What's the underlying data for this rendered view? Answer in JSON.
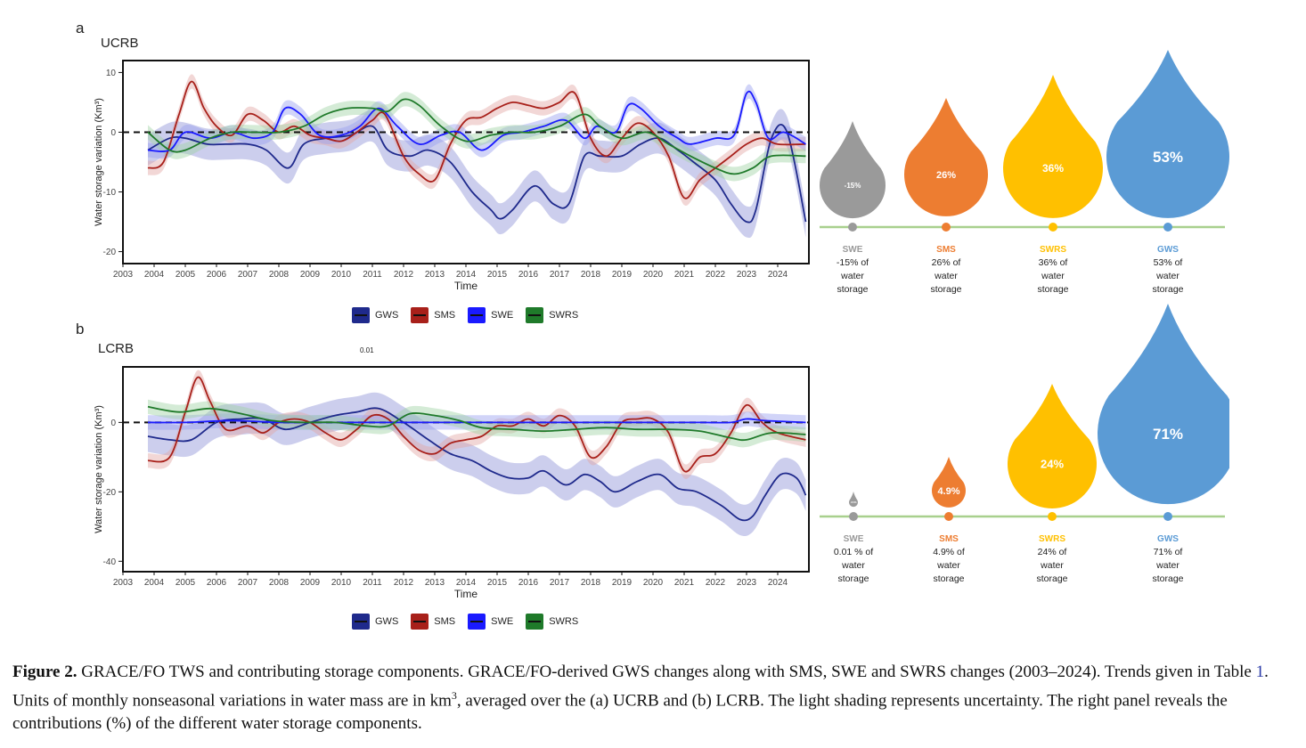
{
  "panel_a": {
    "letter": "a",
    "basin": "UCRB"
  },
  "panel_b": {
    "letter": "b",
    "basin": "LCRB",
    "floating_note": "0.01"
  },
  "legend": [
    {
      "name": "GWS",
      "color": "#1f2a8c"
    },
    {
      "name": "SMS",
      "color": "#a8201a"
    },
    {
      "name": "SWE",
      "color": "#1a1aff"
    },
    {
      "name": "SWRS",
      "color": "#1f7a2a"
    }
  ],
  "chart_data": [
    {
      "type": "line",
      "title": "UCRB",
      "xlabel": "Time",
      "ylabel": "Water storage variation  (Km³)",
      "xlim": [
        2003,
        2025
      ],
      "ylim": [
        -22,
        12
      ],
      "yticks": [
        10,
        0,
        -10,
        -20
      ],
      "xticks": [
        2003,
        2004,
        2005,
        2006,
        2007,
        2008,
        2009,
        2010,
        2011,
        2012,
        2013,
        2014,
        2015,
        2016,
        2017,
        2018,
        2019,
        2020,
        2021,
        2022,
        2023,
        2024
      ],
      "zero_line": "dashed",
      "series": [
        {
          "name": "GWS",
          "color": "#1f2a8c",
          "band": "#8f93d8",
          "x": [
            2003.8,
            2004.5,
            2005,
            2005.7,
            2006.3,
            2007,
            2007.6,
            2008.3,
            2008.8,
            2009.5,
            2010.3,
            2011,
            2011.5,
            2012.2,
            2012.8,
            2013.5,
            2014.2,
            2014.8,
            2015.1,
            2015.5,
            2016.2,
            2016.8,
            2017.3,
            2017.8,
            2018.3,
            2019,
            2019.6,
            2020.2,
            2020.8,
            2021.3,
            2022,
            2022.5,
            2023.0,
            2023.3,
            2023.8,
            2024.3,
            2024.9
          ],
          "y": [
            -3,
            -1,
            -1,
            -2,
            -2,
            -2,
            -3,
            -6,
            -2,
            -1,
            -0.5,
            1,
            -3,
            -4,
            -3,
            -5,
            -10,
            -13,
            -14.5,
            -13,
            -9,
            -12,
            -12,
            -4,
            -4,
            -4,
            -2,
            -1,
            -3,
            -5,
            -8,
            -12,
            -15,
            -13,
            -1,
            0,
            -15
          ]
        },
        {
          "name": "SMS",
          "color": "#a8201a",
          "band": "#e2a7a5",
          "x": [
            2003.8,
            2004.3,
            2004.8,
            2005.2,
            2005.6,
            2006,
            2006.5,
            2007,
            2007.5,
            2008,
            2008.5,
            2009,
            2009.5,
            2010,
            2010.5,
            2011,
            2011.4,
            2012,
            2012.5,
            2013,
            2013.5,
            2014,
            2014.5,
            2015,
            2015.5,
            2016,
            2016.5,
            2017,
            2017.5,
            2018,
            2018.5,
            2019,
            2019.5,
            2020,
            2020.5,
            2021,
            2021.5,
            2022,
            2022.5,
            2023,
            2023.5,
            2024,
            2024.9
          ],
          "y": [
            -6,
            -5,
            3,
            8.5,
            4,
            1,
            -0.5,
            3,
            2,
            0,
            1,
            -0.5,
            -1,
            -1.5,
            0,
            2,
            3,
            -4,
            -7,
            -8,
            -2,
            2,
            2.5,
            4,
            5,
            4.5,
            4,
            5,
            6.5,
            -1,
            -4,
            -1,
            1.5,
            0,
            -4,
            -11,
            -8,
            -6,
            -4,
            -2,
            -1,
            -2,
            -2
          ]
        },
        {
          "name": "SWE",
          "color": "#1a1aff",
          "band": "#9aa0f0",
          "x": [
            2003.8,
            2004.5,
            2005,
            2005.8,
            2006.5,
            2007.2,
            2007.8,
            2008.2,
            2008.7,
            2009.3,
            2010,
            2010.6,
            2011.2,
            2011.8,
            2012.5,
            2013.2,
            2013.8,
            2014.5,
            2015.2,
            2015.8,
            2016.5,
            2017.2,
            2017.8,
            2018.2,
            2018.8,
            2019.2,
            2019.6,
            2020.2,
            2020.8,
            2021.2,
            2022,
            2022.6,
            2023.0,
            2023.3,
            2023.7,
            2024.2,
            2024.9
          ],
          "y": [
            -3,
            -3,
            0,
            -1,
            0,
            -1,
            0,
            4,
            3,
            -0.5,
            -0.5,
            1,
            4,
            1,
            -2,
            -0.5,
            0,
            -3,
            -0.5,
            0,
            1,
            2,
            -1,
            1,
            0,
            4.5,
            4,
            1,
            -1,
            -2,
            -1,
            -0.5,
            6.5,
            5,
            -1,
            0,
            -2
          ]
        },
        {
          "name": "SWRS",
          "color": "#1f7a2a",
          "band": "#9fd3a3",
          "x": [
            2003.8,
            2004.5,
            2005,
            2005.8,
            2006.5,
            2007.2,
            2008,
            2008.8,
            2009.5,
            2010.2,
            2011,
            2011.5,
            2012,
            2012.5,
            2013.2,
            2014,
            2014.8,
            2015.5,
            2016.2,
            2017,
            2017.8,
            2018.3,
            2019,
            2019.8,
            2020.5,
            2021.2,
            2022,
            2022.6,
            2023.2,
            2023.8,
            2024.9
          ],
          "y": [
            0,
            -3,
            -3,
            -1,
            0,
            0,
            0,
            1,
            3,
            4,
            4,
            3.5,
            5.5,
            4.5,
            1,
            -1.5,
            -0.5,
            0,
            0,
            1,
            3,
            1,
            -1,
            0,
            -2,
            -4,
            -6,
            -7,
            -6,
            -4,
            -4
          ]
        }
      ]
    },
    {
      "type": "line",
      "title": "LCRB",
      "xlabel": "Time",
      "ylabel": "Water storage variation  (Km³)",
      "xlim": [
        2003,
        2025
      ],
      "ylim": [
        -43,
        16
      ],
      "yticks": [
        0,
        -20,
        -40
      ],
      "xticks": [
        2003,
        2004,
        2005,
        2006,
        2007,
        2008,
        2009,
        2010,
        2011,
        2012,
        2013,
        2014,
        2015,
        2016,
        2017,
        2018,
        2019,
        2020,
        2021,
        2022,
        2023,
        2024
      ],
      "zero_line": "dashed",
      "series": [
        {
          "name": "GWS",
          "color": "#1f2a8c",
          "band": "#8f93d8",
          "x": [
            2003.8,
            2004.5,
            2005.2,
            2006,
            2006.8,
            2007.5,
            2008.2,
            2009,
            2009.8,
            2010.5,
            2011.2,
            2012,
            2012.8,
            2013.5,
            2014.2,
            2014.8,
            2015.4,
            2016,
            2016.5,
            2017.2,
            2017.8,
            2018.3,
            2018.8,
            2019.5,
            2020.2,
            2020.8,
            2021.4,
            2022.2,
            2022.8,
            2023.2,
            2023.6,
            2024.1,
            2024.6,
            2024.9
          ],
          "y": [
            -4,
            -5,
            -5,
            0,
            1,
            1,
            -2,
            0,
            2,
            3,
            4,
            0,
            -5,
            -9,
            -11,
            -14,
            -16,
            -16,
            -14,
            -18,
            -15,
            -17,
            -20,
            -17,
            -15,
            -19,
            -20,
            -24,
            -28,
            -27,
            -21,
            -15,
            -16,
            -21
          ]
        },
        {
          "name": "SMS",
          "color": "#a8201a",
          "band": "#e2a7a5",
          "x": [
            2003.8,
            2004.5,
            2005,
            2005.4,
            2005.8,
            2006.3,
            2007,
            2007.5,
            2008,
            2008.5,
            2009,
            2009.5,
            2010,
            2010.5,
            2011,
            2011.5,
            2012,
            2012.5,
            2013,
            2013.5,
            2014,
            2014.5,
            2015,
            2015.5,
            2016,
            2016.5,
            2017,
            2017.5,
            2018,
            2018.5,
            2019,
            2019.5,
            2020,
            2020.5,
            2021,
            2021.5,
            2022,
            2022.5,
            2023,
            2023.5,
            2024,
            2024.9
          ],
          "y": [
            -11,
            -10,
            3,
            13,
            6,
            -2,
            -1,
            -3,
            0,
            1,
            0,
            -3,
            -5,
            -2,
            2,
            1,
            -4,
            -8,
            -9,
            -6,
            -5,
            -4,
            -1,
            -1,
            1,
            -1,
            2,
            -1,
            -10,
            -7,
            0,
            1,
            1,
            -3,
            -14,
            -10,
            -9,
            -3,
            5,
            0,
            -3,
            -5
          ]
        },
        {
          "name": "SWE",
          "color": "#1a1aff",
          "band": "#9aa0f0",
          "x": [
            2003.8,
            2005,
            2006.5,
            2008,
            2009.5,
            2011,
            2012.5,
            2014,
            2015.5,
            2017,
            2018.5,
            2020,
            2021.5,
            2022.5,
            2023,
            2023.6,
            2024.9
          ],
          "y": [
            0,
            0,
            0.5,
            0,
            0,
            0,
            0,
            0,
            0,
            0,
            0,
            0,
            0,
            0,
            1,
            0.5,
            0
          ]
        },
        {
          "name": "SWRS",
          "color": "#1f7a2a",
          "band": "#9fd3a3",
          "x": [
            2003.8,
            2004.8,
            2005.8,
            2006.8,
            2007.8,
            2008.8,
            2009.8,
            2010.8,
            2011.5,
            2012.2,
            2013,
            2013.8,
            2014.5,
            2015.5,
            2016.5,
            2017.5,
            2018.5,
            2019.5,
            2020.5,
            2021.5,
            2022.5,
            2023,
            2023.8,
            2024.9
          ],
          "y": [
            4.5,
            3,
            4,
            2.5,
            0.5,
            0,
            0,
            -1,
            -1,
            2.5,
            2,
            0.5,
            -1.5,
            -2,
            -2.5,
            -2,
            -1.5,
            -2,
            -2,
            -2.5,
            -4.5,
            -5,
            -3,
            -3.5
          ]
        }
      ]
    }
  ],
  "drops_a": [
    {
      "pct": "-15%",
      "color": "#9a9a9a",
      "name": "SWE",
      "line1": "-15% of",
      "line2": "water",
      "line3": "storage"
    },
    {
      "pct": "26%",
      "color": "#ed7d31",
      "name": "SMS",
      "line1": "26% of",
      "line2": "water",
      "line3": "storage"
    },
    {
      "pct": "36%",
      "color": "#ffc000",
      "name": "SWRS",
      "line1": "36% of",
      "line2": "water",
      "line3": "storage"
    },
    {
      "pct": "53%",
      "color": "#5b9bd5",
      "name": "GWS",
      "line1": "53% of",
      "line2": "water",
      "line3": "storage"
    }
  ],
  "drops_b": [
    {
      "pct": ".01%",
      "color": "#9a9a9a",
      "name": "SWE",
      "line1": "0.01 % of",
      "line2": "water",
      "line3": "storage"
    },
    {
      "pct": "4.9%",
      "color": "#ed7d31",
      "name": "SMS",
      "line1": "4.9% of",
      "line2": "water",
      "line3": "storage"
    },
    {
      "pct": "24%",
      "color": "#ffc000",
      "name": "SWRS",
      "line1": "24% of",
      "line2": "water",
      "line3": "storage"
    },
    {
      "pct": "71%",
      "color": "#5b9bd5",
      "name": "GWS",
      "line1": "71% of",
      "line2": "water",
      "line3": "storage"
    }
  ],
  "caption": {
    "label": "Figure 2.",
    "text1": "  GRACE/FO TWS and contributing storage components. GRACE/FO-derived GWS changes along with SMS, SWE and SWRS changes (2003–2024). Trends given in Table ",
    "table_ref": "1",
    "text2": ". Units of monthly nonseasonal variations in water mass are in km",
    "sup": "3",
    "text3": ", averaged over the (a) UCRB and (b) LCRB. The light shading represents uncertainty. The right panel reveals the contributions (%) of the different water storage components."
  }
}
